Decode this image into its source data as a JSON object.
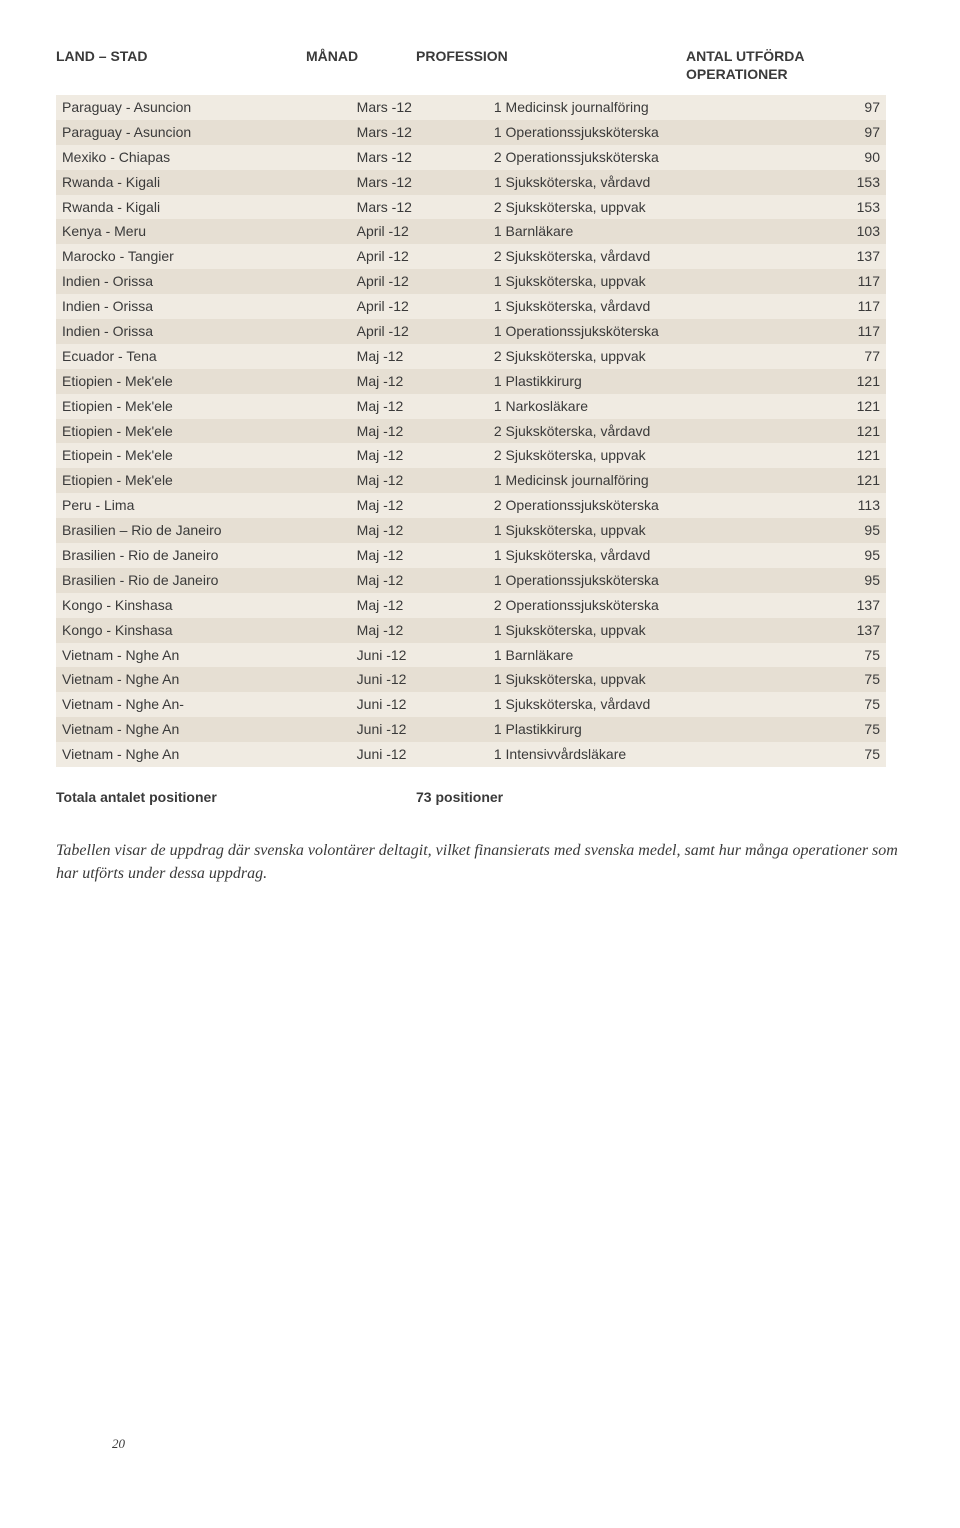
{
  "header": {
    "land": "LAND – STAD",
    "month": "MÅNAD",
    "profession": "PROFESSION",
    "count_line1": "ANTAL UTFÖRDA",
    "count_line2": "OPERATIONER"
  },
  "colors": {
    "row_even": "#f0ebe2",
    "row_odd": "#e6dfd3",
    "text": "#3a3a3a",
    "background": "#ffffff"
  },
  "rows": [
    {
      "land": "Paraguay - Asuncion",
      "month": "Mars -12",
      "prof": "1 Medicinsk journalföring",
      "count": "97"
    },
    {
      "land": "Paraguay - Asuncion",
      "month": "Mars -12",
      "prof": "1 Operationssjuksköterska",
      "count": "97"
    },
    {
      "land": "Mexiko - Chiapas",
      "month": "Mars -12",
      "prof": "2 Operationssjuksköterska",
      "count": "90"
    },
    {
      "land": "Rwanda - Kigali",
      "month": "Mars -12",
      "prof": "1 Sjuksköterska, vårdavd",
      "count": "153"
    },
    {
      "land": "Rwanda - Kigali",
      "month": "Mars -12",
      "prof": "2 Sjuksköterska, uppvak",
      "count": "153"
    },
    {
      "land": "Kenya - Meru",
      "month": "April -12",
      "prof": "1 Barnläkare",
      "count": "103"
    },
    {
      "land": "Marocko - Tangier",
      "month": "April -12",
      "prof": "2 Sjuksköterska, vårdavd",
      "count": "137"
    },
    {
      "land": "Indien - Orissa",
      "month": "April -12",
      "prof": "1 Sjuksköterska, uppvak",
      "count": "117"
    },
    {
      "land": "Indien - Orissa",
      "month": "April -12",
      "prof": "1 Sjuksköterska, vårdavd",
      "count": "117"
    },
    {
      "land": "Indien - Orissa",
      "month": "April -12",
      "prof": "1 Operationssjuksköterska",
      "count": "117"
    },
    {
      "land": "Ecuador - Tena",
      "month": "Maj -12",
      "prof": "2 Sjuksköterska, uppvak",
      "count": "77"
    },
    {
      "land": "Etiopien - Mek'ele",
      "month": "Maj -12",
      "prof": "1 Plastikkirurg",
      "count": "121"
    },
    {
      "land": "Etiopien - Mek'ele",
      "month": "Maj -12",
      "prof": "1 Narkosläkare",
      "count": "121"
    },
    {
      "land": "Etiopien - Mek'ele",
      "month": "Maj -12",
      "prof": "2 Sjuksköterska, vårdavd",
      "count": "121"
    },
    {
      "land": "Etiopein - Mek'ele",
      "month": "Maj -12",
      "prof": "2 Sjuksköterska, uppvak",
      "count": "121"
    },
    {
      "land": "Etiopien - Mek'ele",
      "month": "Maj -12",
      "prof": "1 Medicinsk journalföring",
      "count": "121"
    },
    {
      "land": "Peru - Lima",
      "month": "Maj -12",
      "prof": "2 Operationssjuksköterska",
      "count": "113"
    },
    {
      "land": "Brasilien – Rio de Janeiro",
      "month": "Maj -12",
      "prof": "1 Sjuksköterska, uppvak",
      "count": "95"
    },
    {
      "land": "Brasilien - Rio de Janeiro",
      "month": "Maj -12",
      "prof": "1 Sjuksköterska, vårdavd",
      "count": "95"
    },
    {
      "land": "Brasilien - Rio de Janeiro",
      "month": "Maj -12",
      "prof": "1 Operationssjuksköterska",
      "count": "95"
    },
    {
      "land": "Kongo - Kinshasa",
      "month": "Maj -12",
      "prof": "2 Operationssjuksköterska",
      "count": "137"
    },
    {
      "land": "Kongo - Kinshasa",
      "month": "Maj -12",
      "prof": "1 Sjuksköterska, uppvak",
      "count": "137"
    },
    {
      "land": "Vietnam - Nghe An",
      "month": "Juni -12",
      "prof": "1 Barnläkare",
      "count": "75"
    },
    {
      "land": "Vietnam - Nghe An",
      "month": "Juni -12",
      "prof": "1 Sjuksköterska, uppvak",
      "count": "75"
    },
    {
      "land": "Vietnam - Nghe An-",
      "month": "Juni -12",
      "prof": "1 Sjuksköterska, vårdavd",
      "count": "75"
    },
    {
      "land": "Vietnam - Nghe An",
      "month": "Juni -12",
      "prof": "1 Plastikkirurg",
      "count": "75"
    },
    {
      "land": "Vietnam - Nghe An",
      "month": "Juni -12",
      "prof": "1 Intensivvårdsläkare",
      "count": "75"
    }
  ],
  "totals": {
    "label": "Totala antalet positioner",
    "value": "73 positioner"
  },
  "caption": "Tabellen visar de uppdrag där svenska volontärer deltagit, vilket finansierats med svenska medel, samt hur många operationer som har utförts under dessa uppdrag.",
  "page_number": "20"
}
